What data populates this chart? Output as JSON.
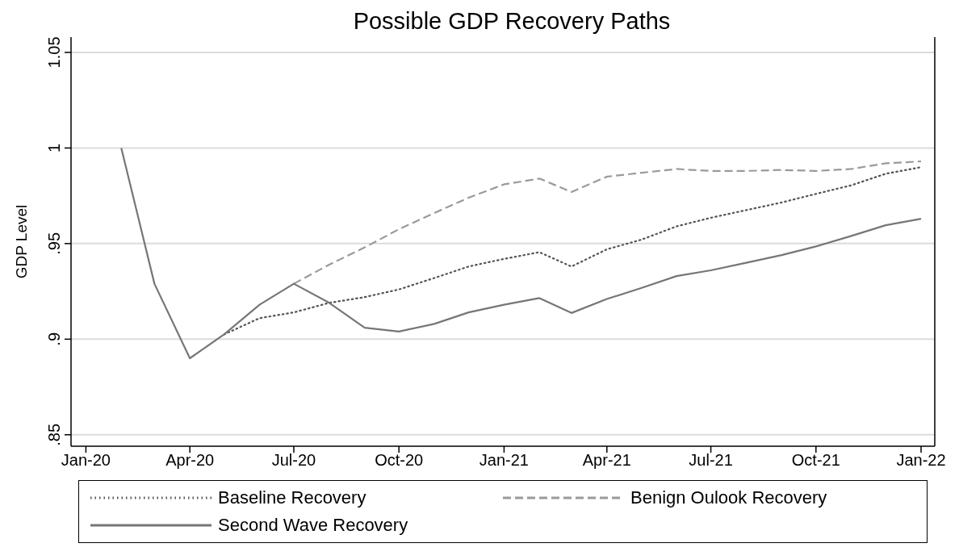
{
  "chart_data": {
    "type": "line",
    "title": "Possible GDP Recovery Paths",
    "ylabel": "GDP Level",
    "x": [
      "2020-02",
      "2020-03",
      "2020-04",
      "2020-05",
      "2020-06",
      "2020-07",
      "2020-08",
      "2020-09",
      "2020-10",
      "2020-11",
      "2020-12",
      "2021-01",
      "2021-02",
      "2021-03",
      "2021-04",
      "2021-05",
      "2021-06",
      "2021-07",
      "2021-08",
      "2021-09",
      "2021-10",
      "2021-11",
      "2021-12",
      "2022-01"
    ],
    "series": [
      {
        "name": "Baseline Recovery",
        "color": "#555555",
        "line_style": "dotted",
        "values": [
          null,
          null,
          null,
          0.9025,
          0.911,
          0.914,
          0.919,
          0.922,
          0.926,
          0.932,
          0.938,
          0.942,
          0.9455,
          0.938,
          0.947,
          0.952,
          0.959,
          0.9635,
          0.9675,
          0.9715,
          0.976,
          0.9805,
          0.9865,
          0.99
        ]
      },
      {
        "name": "Benign Oulook Recovery",
        "color": "#9a9a9a",
        "line_style": "dashed",
        "values": [
          null,
          null,
          null,
          null,
          null,
          0.929,
          0.939,
          0.948,
          0.9575,
          0.966,
          0.974,
          0.981,
          0.984,
          0.977,
          0.985,
          0.987,
          0.989,
          0.988,
          0.988,
          0.9885,
          0.988,
          0.989,
          0.992,
          0.993
        ]
      },
      {
        "name": "Second Wave Recovery",
        "color": "#767676",
        "line_style": "solid",
        "values": [
          1.0,
          0.929,
          0.89,
          0.9025,
          0.918,
          0.929,
          0.919,
          0.906,
          0.904,
          0.908,
          0.914,
          0.918,
          0.9215,
          0.9137,
          0.921,
          0.9267,
          0.933,
          0.936,
          0.94,
          0.944,
          0.9485,
          0.954,
          0.9596,
          0.963
        ]
      }
    ],
    "xlim": [
      "2019-12-19",
      "2022-01-13"
    ],
    "xticks": [
      {
        "value": "2020-01",
        "label": "Jan-20"
      },
      {
        "value": "2020-04",
        "label": "Apr-20"
      },
      {
        "value": "2020-07",
        "label": "Jul-20"
      },
      {
        "value": "2020-10",
        "label": "Oct-20"
      },
      {
        "value": "2021-01",
        "label": "Jan-21"
      },
      {
        "value": "2021-04",
        "label": "Apr-21"
      },
      {
        "value": "2021-07",
        "label": "Jul-21"
      },
      {
        "value": "2021-10",
        "label": "Oct-21"
      },
      {
        "value": "2022-01",
        "label": "Jan-22"
      }
    ],
    "ylim": [
      0.844,
      1.058
    ],
    "yticks": [
      {
        "value": 0.85,
        "label": ".85"
      },
      {
        "value": 0.9,
        "label": ".9"
      },
      {
        "value": 0.95,
        "label": ".95"
      },
      1,
      1.05
    ],
    "grid": "y",
    "legend": "bottom",
    "marker": "none"
  }
}
